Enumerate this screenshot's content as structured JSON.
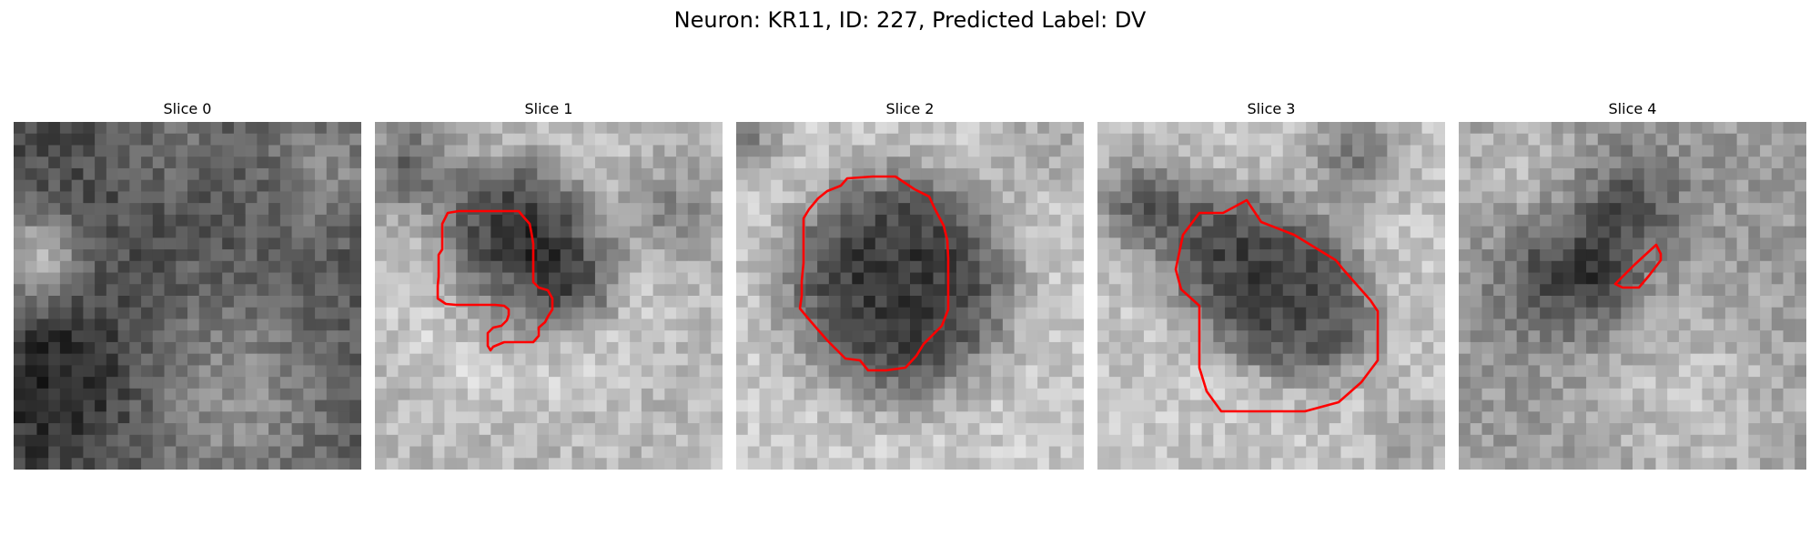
{
  "figure": {
    "title": "Neuron: KR11, ID: 227, Predicted Label: DV"
  },
  "colors": {
    "outline": "#ff0000",
    "background": "#ffffff"
  },
  "slices": [
    {
      "label": "Slice 0"
    },
    {
      "label": "Slice 1"
    },
    {
      "label": "Slice 2"
    },
    {
      "label": "Slice 3"
    },
    {
      "label": "Slice 4"
    }
  ]
}
